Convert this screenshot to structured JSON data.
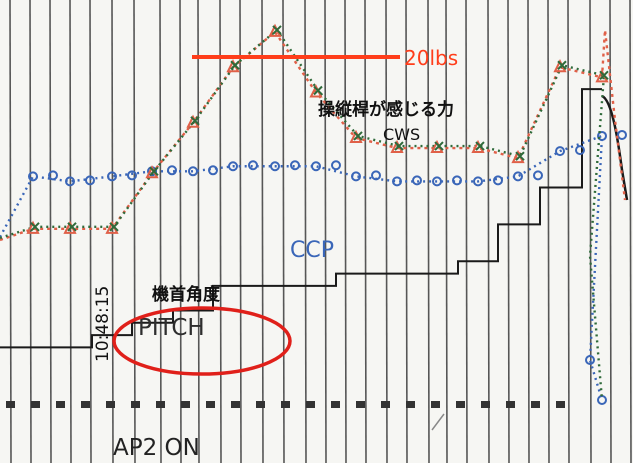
{
  "chart_data": {
    "type": "line",
    "title": "",
    "xlabel": "",
    "ylabel": "",
    "x": [
      1,
      2,
      3,
      4,
      5,
      6,
      7,
      8,
      9,
      10,
      11,
      12,
      13,
      14,
      15
    ],
    "series": [
      {
        "name": "CWS",
        "values": [
          3,
          3,
          3,
          14,
          24,
          35,
          42,
          30,
          21,
          19,
          19,
          19,
          17,
          35,
          33
        ]
      },
      {
        "name": "CCP",
        "values": [
          13,
          12,
          13,
          14,
          14,
          15,
          15,
          15,
          13,
          12,
          12,
          12,
          13,
          18,
          21
        ]
      },
      {
        "name": "PITCH",
        "values": [
          2,
          2,
          3,
          4,
          5,
          7,
          7,
          7,
          8,
          8,
          8,
          9,
          12,
          15,
          23
        ]
      }
    ],
    "annotations": {
      "force_ref": "20lbs",
      "cws_label": "操縦桿が感じる力\nCWS",
      "ccp_label": "CCP",
      "pitch_jp": "機首角度",
      "pitch_en": "PITCH",
      "time": "10:48:15",
      "ap": "AP2 ON"
    },
    "colors": {
      "cws_red": "#e06048",
      "cws_green": "#2f6a3a",
      "ccp_blue": "#3a66b8",
      "pitch_black": "#1a1a1a",
      "ref_orange": "#ff3d1a",
      "ellipse_red": "#e0201a",
      "grid": "#3a3a3a"
    },
    "grid": true,
    "legend": "none"
  }
}
